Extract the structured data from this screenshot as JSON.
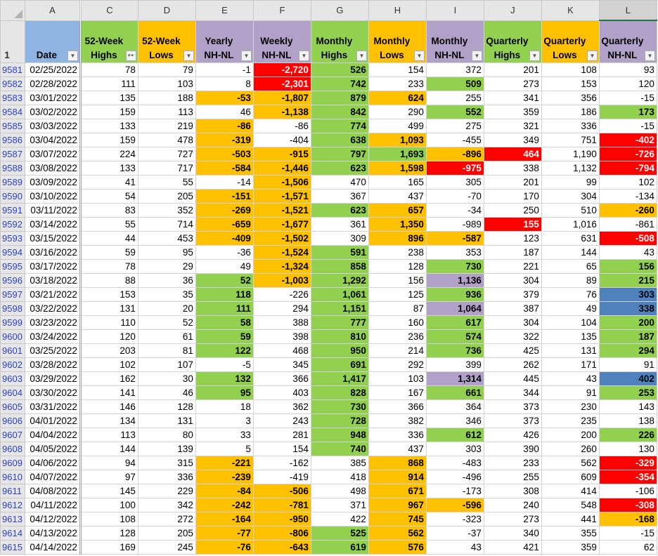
{
  "palette": {
    "w": "#FFFFFF",
    "o": "#FFC000",
    "r": "#FF0000",
    "g": "#92D050",
    "p": "#B1A0C7",
    "b": "#4F81BD",
    "hdr_blue": "#8DB4E2"
  },
  "column_letters": [
    "A",
    "C",
    "D",
    "E",
    "F",
    "G",
    "H",
    "I",
    "J",
    "K",
    "L"
  ],
  "header_row_number": "1",
  "headers": [
    {
      "label": "Date",
      "fill": "hdr_blue",
      "filter": "dropdown"
    },
    {
      "label": "52-Week Highs",
      "fill": "g",
      "filter": "filter-active"
    },
    {
      "label": "52-Week Lows",
      "fill": "o",
      "filter": "dropdown"
    },
    {
      "label": "Yearly NH-NL",
      "fill": "p",
      "filter": "dropdown"
    },
    {
      "label": "Weekly NH-NL",
      "fill": "p",
      "filter": "dropdown"
    },
    {
      "label": "Monthly Highs",
      "fill": "g",
      "filter": "dropdown"
    },
    {
      "label": "Monthly Lows",
      "fill": "o",
      "filter": "dropdown"
    },
    {
      "label": "Monthly NH-NL",
      "fill": "p",
      "filter": "dropdown"
    },
    {
      "label": "Quarterly Highs",
      "fill": "g",
      "filter": "dropdown"
    },
    {
      "label": "Quarterly Lows",
      "fill": "o",
      "filter": "dropdown"
    },
    {
      "label": "Quarterly NH-NL",
      "fill": "p",
      "filter": "dropdown"
    }
  ],
  "rows": [
    {
      "n": "9581",
      "v": [
        "02/25/2022",
        "78",
        "79",
        "-1",
        "-2,720",
        "526",
        "154",
        "372",
        "201",
        "108",
        "93"
      ],
      "f": "wwwwrgwwwww"
    },
    {
      "n": "9582",
      "v": [
        "02/28/2022",
        "111",
        "103",
        "8",
        "-2,301",
        "742",
        "233",
        "509",
        "273",
        "153",
        "120"
      ],
      "f": "wwwwrgwgwww"
    },
    {
      "n": "9583",
      "v": [
        "03/01/2022",
        "135",
        "188",
        "-53",
        "-1,807",
        "879",
        "624",
        "255",
        "341",
        "356",
        "-15"
      ],
      "f": "wwwoogowwww"
    },
    {
      "n": "9584",
      "v": [
        "03/02/2022",
        "159",
        "113",
        "46",
        "-1,138",
        "842",
        "290",
        "552",
        "359",
        "186",
        "173"
      ],
      "f": "wwwwogwgwwg"
    },
    {
      "n": "9585",
      "v": [
        "03/03/2022",
        "133",
        "219",
        "-86",
        "-86",
        "774",
        "499",
        "275",
        "321",
        "336",
        "-15"
      ],
      "f": "wwwowgwwwww"
    },
    {
      "n": "9586",
      "v": [
        "03/04/2022",
        "159",
        "478",
        "-319",
        "-404",
        "638",
        "1,093",
        "-455",
        "349",
        "751",
        "-402"
      ],
      "f": "wwwowgowwwr"
    },
    {
      "n": "9587",
      "v": [
        "03/07/2022",
        "224",
        "727",
        "-503",
        "-915",
        "797",
        "1,693",
        "-896",
        "464",
        "1,190",
        "-726"
      ],
      "f": "wwwooggorwr"
    },
    {
      "n": "9588",
      "v": [
        "03/08/2022",
        "133",
        "717",
        "-584",
        "-1,446",
        "623",
        "1,598",
        "-975",
        "338",
        "1,132",
        "-794"
      ],
      "f": "wwwoogorwwr"
    },
    {
      "n": "9589",
      "v": [
        "03/09/2022",
        "41",
        "55",
        "-14",
        "-1,506",
        "470",
        "165",
        "305",
        "201",
        "99",
        "102"
      ],
      "f": "wwwwowwwwww"
    },
    {
      "n": "9590",
      "v": [
        "03/10/2022",
        "54",
        "205",
        "-151",
        "-1,571",
        "367",
        "437",
        "-70",
        "170",
        "304",
        "-134"
      ],
      "f": "wwwoowwwwww"
    },
    {
      "n": "9591",
      "v": [
        "03/11/2022",
        "83",
        "352",
        "-269",
        "-1,521",
        "623",
        "657",
        "-34",
        "250",
        "510",
        "-260"
      ],
      "f": "wwwoogowwwo"
    },
    {
      "n": "9592",
      "v": [
        "03/14/2022",
        "55",
        "714",
        "-659",
        "-1,677",
        "361",
        "1,350",
        "-989",
        "155",
        "1,016",
        "-861"
      ],
      "f": "wwwoowowrwwr"
    },
    {
      "n": "9593",
      "v": [
        "03/15/2022",
        "44",
        "453",
        "-409",
        "-1,502",
        "309",
        "896",
        "-587",
        "123",
        "631",
        "-508"
      ],
      "f": "wwwoowoowwr"
    },
    {
      "n": "9594",
      "v": [
        "03/16/2022",
        "59",
        "95",
        "-36",
        "-1,524",
        "591",
        "238",
        "353",
        "187",
        "144",
        "43"
      ],
      "f": "wwwwogwwwww"
    },
    {
      "n": "9595",
      "v": [
        "03/17/2022",
        "78",
        "29",
        "49",
        "-1,324",
        "858",
        "128",
        "730",
        "221",
        "65",
        "156"
      ],
      "f": "wwwwogwgwwg"
    },
    {
      "n": "9596",
      "v": [
        "03/18/2022",
        "88",
        "36",
        "52",
        "-1,003",
        "1,292",
        "156",
        "1,136",
        "304",
        "89",
        "215"
      ],
      "f": "wwwgogwpwwg"
    },
    {
      "n": "9597",
      "v": [
        "03/21/2022",
        "153",
        "35",
        "118",
        "-226",
        "1,061",
        "125",
        "936",
        "379",
        "76",
        "303"
      ],
      "f": "wwwgwgwgwwb"
    },
    {
      "n": "9598",
      "v": [
        "03/22/2022",
        "131",
        "20",
        "111",
        "294",
        "1,151",
        "87",
        "1,064",
        "387",
        "49",
        "338"
      ],
      "f": "wwwgwgwpwwb"
    },
    {
      "n": "9599",
      "v": [
        "03/23/2022",
        "110",
        "52",
        "58",
        "388",
        "777",
        "160",
        "617",
        "304",
        "104",
        "200"
      ],
      "f": "wwwgwgwgwwg"
    },
    {
      "n": "9600",
      "v": [
        "03/24/2022",
        "120",
        "61",
        "59",
        "398",
        "810",
        "236",
        "574",
        "322",
        "135",
        "187"
      ],
      "f": "wwwgwgwgwwg"
    },
    {
      "n": "9601",
      "v": [
        "03/25/2022",
        "203",
        "81",
        "122",
        "468",
        "950",
        "214",
        "736",
        "425",
        "131",
        "294"
      ],
      "f": "wwwgwgwgwwg"
    },
    {
      "n": "9602",
      "v": [
        "03/28/2022",
        "102",
        "107",
        "-5",
        "345",
        "691",
        "292",
        "399",
        "262",
        "171",
        "91"
      ],
      "f": "wwwwwgwwwww"
    },
    {
      "n": "9603",
      "v": [
        "03/29/2022",
        "162",
        "30",
        "132",
        "366",
        "1,417",
        "103",
        "1,314",
        "445",
        "43",
        "402"
      ],
      "f": "wwwgwgwpwwb"
    },
    {
      "n": "9604",
      "v": [
        "03/30/2022",
        "141",
        "46",
        "95",
        "403",
        "828",
        "167",
        "661",
        "344",
        "91",
        "253"
      ],
      "f": "wwwgwgwgwwg"
    },
    {
      "n": "9605",
      "v": [
        "03/31/2022",
        "146",
        "128",
        "18",
        "362",
        "730",
        "366",
        "364",
        "373",
        "230",
        "143"
      ],
      "f": "wwwwwgwwwww"
    },
    {
      "n": "9606",
      "v": [
        "04/01/2022",
        "134",
        "131",
        "3",
        "243",
        "728",
        "382",
        "346",
        "373",
        "235",
        "138"
      ],
      "f": "wwwwwgwwwww"
    },
    {
      "n": "9607",
      "v": [
        "04/04/2022",
        "113",
        "80",
        "33",
        "281",
        "948",
        "336",
        "612",
        "426",
        "200",
        "226"
      ],
      "f": "wwwwwgwgwwg"
    },
    {
      "n": "9608",
      "v": [
        "04/05/2022",
        "144",
        "139",
        "5",
        "154",
        "740",
        "437",
        "303",
        "390",
        "260",
        "130"
      ],
      "f": "wwwwwgwwwww"
    },
    {
      "n": "9609",
      "v": [
        "04/06/2022",
        "94",
        "315",
        "-221",
        "-162",
        "385",
        "868",
        "-483",
        "233",
        "562",
        "-329"
      ],
      "f": "wwwowwowwwr"
    },
    {
      "n": "9610",
      "v": [
        "04/07/2022",
        "97",
        "336",
        "-239",
        "-419",
        "418",
        "914",
        "-496",
        "255",
        "609",
        "-354"
      ],
      "f": "wwwowwowwwr"
    },
    {
      "n": "9611",
      "v": [
        "04/08/2022",
        "145",
        "229",
        "-84",
        "-506",
        "498",
        "671",
        "-173",
        "308",
        "414",
        "-106"
      ],
      "f": "wwwoowowwww"
    },
    {
      "n": "9612",
      "v": [
        "04/11/2022",
        "100",
        "342",
        "-242",
        "-781",
        "371",
        "967",
        "-596",
        "240",
        "548",
        "-308"
      ],
      "f": "wwwoowoowwr"
    },
    {
      "n": "9613",
      "v": [
        "04/12/2022",
        "108",
        "272",
        "-164",
        "-950",
        "422",
        "745",
        "-323",
        "273",
        "441",
        "-168"
      ],
      "f": "wwwoowowwwo"
    },
    {
      "n": "9614",
      "v": [
        "04/13/2022",
        "128",
        "205",
        "-77",
        "-806",
        "525",
        "562",
        "-37",
        "340",
        "355",
        "-15"
      ],
      "f": "wwwoogowwww"
    },
    {
      "n": "9615",
      "v": [
        "04/14/2022",
        "169",
        "245",
        "-76",
        "-643",
        "619",
        "576",
        "43",
        "421",
        "359",
        "62"
      ],
      "f": "wwwoogowwww"
    }
  ]
}
